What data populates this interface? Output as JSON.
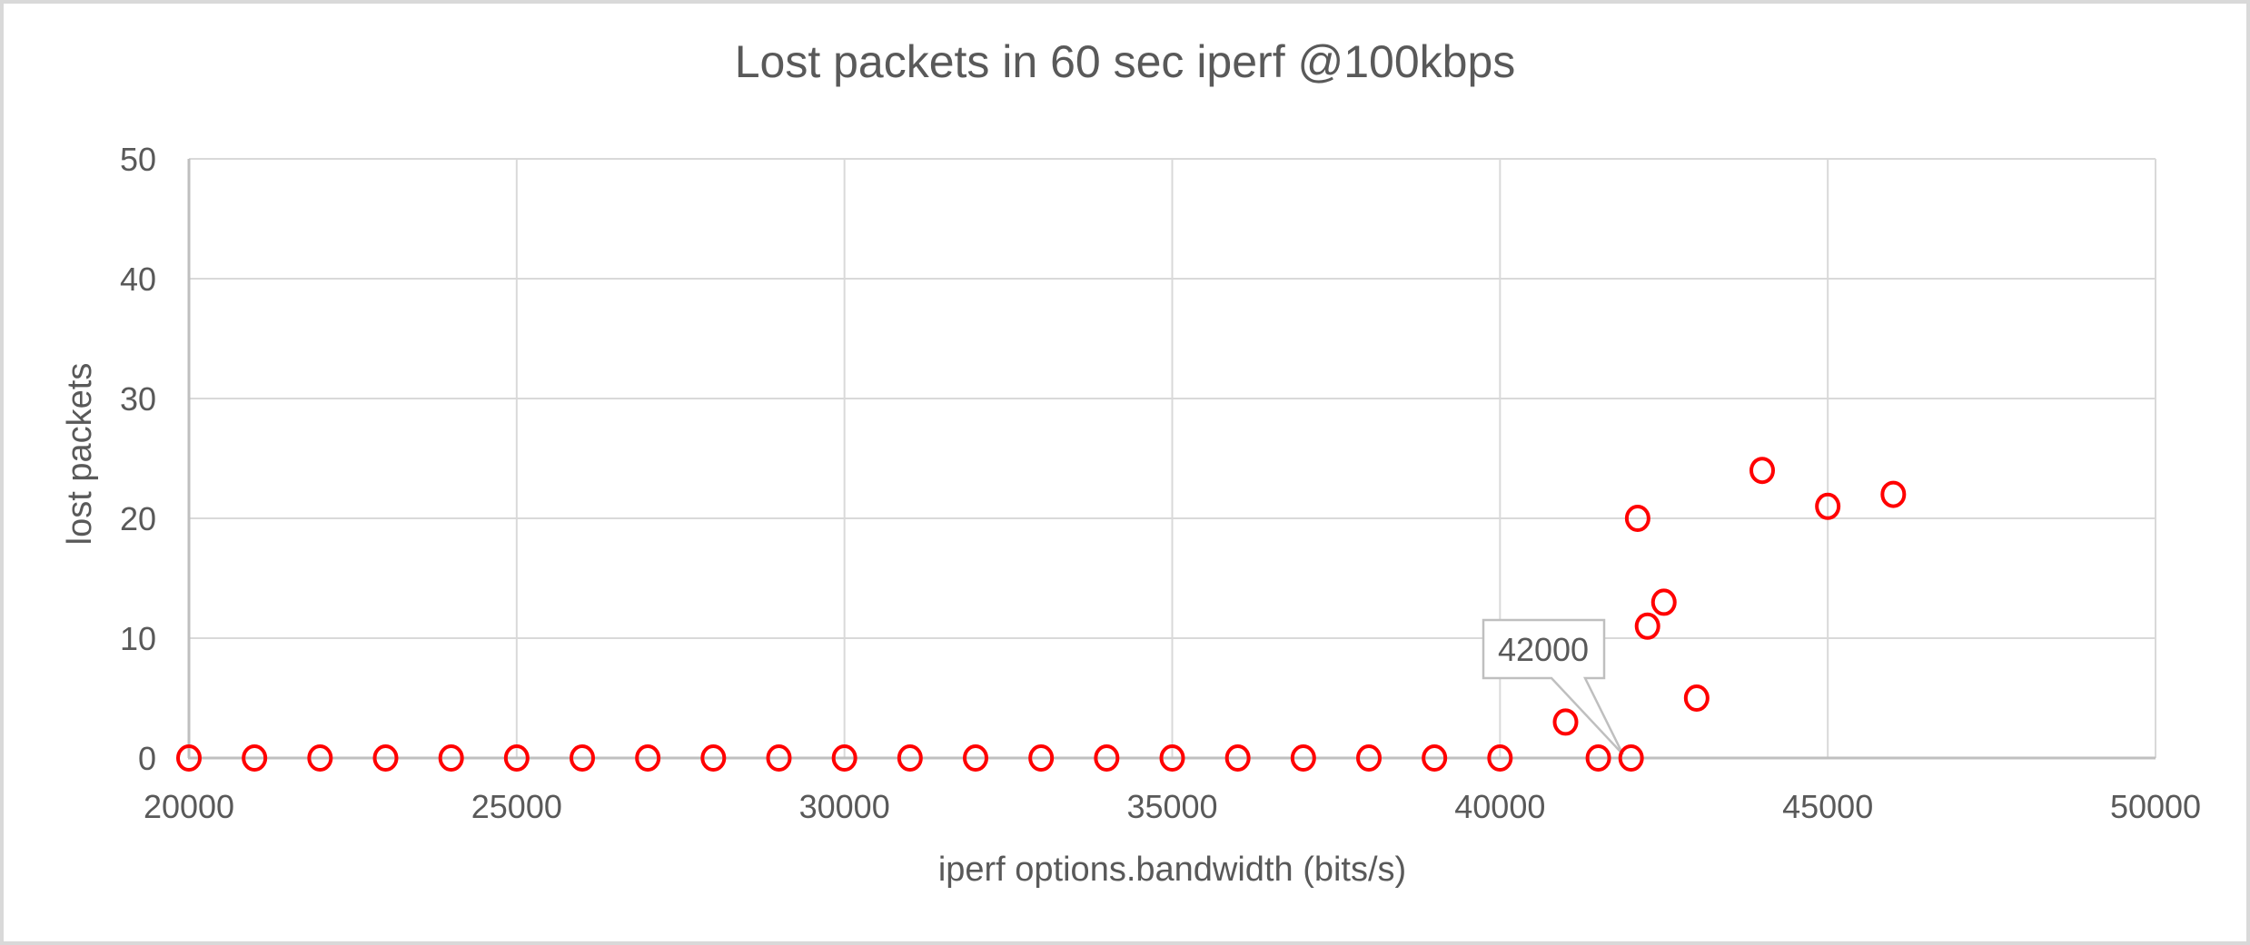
{
  "chart_data": {
    "type": "scatter",
    "title": "Lost packets in 60 sec iperf @100kbps",
    "xlabel": "iperf options.bandwidth (bits/s)",
    "ylabel": "lost packets",
    "xlim": [
      20000,
      50000
    ],
    "ylim": [
      0,
      50
    ],
    "x_ticks": [
      20000,
      25000,
      30000,
      35000,
      40000,
      45000,
      50000
    ],
    "y_ticks": [
      0,
      10,
      20,
      30,
      40,
      50
    ],
    "grid": true,
    "legend_position": "none",
    "series": [
      {
        "name": "lost packets",
        "marker": "open-circle",
        "color": "#FF0000",
        "points": [
          [
            20000,
            0
          ],
          [
            21000,
            0
          ],
          [
            22000,
            0
          ],
          [
            23000,
            0
          ],
          [
            24000,
            0
          ],
          [
            25000,
            0
          ],
          [
            26000,
            0
          ],
          [
            27000,
            0
          ],
          [
            28000,
            0
          ],
          [
            29000,
            0
          ],
          [
            30000,
            0
          ],
          [
            31000,
            0
          ],
          [
            32000,
            0
          ],
          [
            33000,
            0
          ],
          [
            34000,
            0
          ],
          [
            35000,
            0
          ],
          [
            36000,
            0
          ],
          [
            37000,
            0
          ],
          [
            38000,
            0
          ],
          [
            39000,
            0
          ],
          [
            40000,
            0
          ],
          [
            41000,
            3
          ],
          [
            41500,
            0
          ],
          [
            42000,
            0
          ],
          [
            42100,
            20
          ],
          [
            42250,
            11
          ],
          [
            42500,
            13
          ],
          [
            43000,
            5
          ],
          [
            44000,
            24
          ],
          [
            45000,
            21
          ],
          [
            46000,
            22
          ]
        ]
      }
    ],
    "annotation": {
      "label": "42000",
      "target": [
        42000,
        0
      ]
    }
  },
  "colors": {
    "marker": "#FF0000",
    "gridline": "#D9D9D9",
    "axis_line": "#BFBFBF",
    "text": "#595959",
    "callout_border": "#BFBFBF",
    "callout_fill": "#FFFFFF",
    "background": "#FFFFFF",
    "frame_border": "#D9D9D9"
  }
}
